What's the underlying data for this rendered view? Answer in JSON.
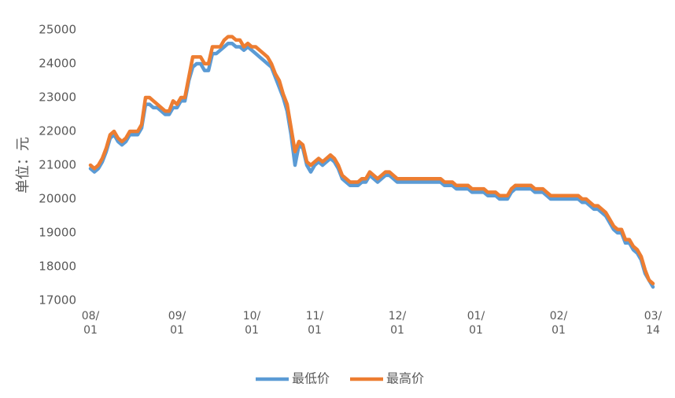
{
  "chart_data": {
    "type": "line",
    "y_label": "单位：元",
    "categories": [
      "08/\n01",
      null,
      null,
      null,
      null,
      null,
      null,
      null,
      null,
      null,
      null,
      null,
      null,
      null,
      null,
      null,
      null,
      null,
      null,
      null,
      null,
      null,
      "09/\n01",
      null,
      null,
      null,
      null,
      null,
      null,
      null,
      null,
      null,
      null,
      null,
      null,
      null,
      null,
      null,
      null,
      null,
      null,
      "10/\n01",
      null,
      null,
      null,
      null,
      null,
      null,
      null,
      null,
      null,
      null,
      null,
      null,
      null,
      null,
      null,
      "11/\n01",
      null,
      null,
      null,
      null,
      null,
      null,
      null,
      null,
      null,
      null,
      null,
      null,
      null,
      null,
      null,
      null,
      null,
      null,
      null,
      null,
      "12/\n01",
      null,
      null,
      null,
      null,
      null,
      null,
      null,
      null,
      null,
      null,
      null,
      null,
      null,
      null,
      null,
      null,
      null,
      null,
      null,
      "01/\n01",
      null,
      null,
      null,
      null,
      null,
      null,
      null,
      null,
      null,
      null,
      null,
      null,
      null,
      null,
      null,
      null,
      null,
      null,
      null,
      null,
      "02/\n01",
      null,
      null,
      null,
      null,
      null,
      null,
      null,
      null,
      null,
      null,
      null,
      null,
      null,
      null,
      null,
      null,
      null,
      null,
      null,
      null,
      null,
      null,
      null,
      "03/\n14"
    ],
    "series": [
      {
        "name": "最低价",
        "color": "#5b9bd5",
        "values": [
          20900,
          20800,
          20900,
          21100,
          21400,
          21800,
          21900,
          21700,
          21600,
          21700,
          21900,
          21900,
          21900,
          22100,
          22800,
          22800,
          22700,
          22700,
          22600,
          22500,
          22500,
          22700,
          22700,
          22900,
          22900,
          23500,
          23900,
          24000,
          24000,
          23800,
          23800,
          24300,
          24300,
          24400,
          24500,
          24600,
          24600,
          24500,
          24500,
          24400,
          24500,
          24400,
          24300,
          24200,
          24100,
          24000,
          23900,
          23600,
          23300,
          23000,
          22600,
          21900,
          21000,
          21600,
          21500,
          21000,
          20800,
          21000,
          21100,
          21000,
          21100,
          21200,
          21100,
          20900,
          20600,
          20500,
          20400,
          20400,
          20400,
          20500,
          20500,
          20700,
          20600,
          20500,
          20600,
          20700,
          20700,
          20600,
          20500,
          20500,
          20500,
          20500,
          20500,
          20500,
          20500,
          20500,
          20500,
          20500,
          20500,
          20500,
          20400,
          20400,
          20400,
          20300,
          20300,
          20300,
          20300,
          20200,
          20200,
          20200,
          20200,
          20100,
          20100,
          20100,
          20000,
          20000,
          20000,
          20200,
          20300,
          20300,
          20300,
          20300,
          20300,
          20200,
          20200,
          20200,
          20100,
          20000,
          20000,
          20000,
          20000,
          20000,
          20000,
          20000,
          20000,
          19900,
          19900,
          19800,
          19700,
          19700,
          19600,
          19500,
          19300,
          19100,
          19000,
          19000,
          18700,
          18700,
          18500,
          18400,
          18200,
          17800,
          17600,
          17400
        ]
      },
      {
        "name": "最高价",
        "color": "#ed7d31",
        "values": [
          21000,
          20900,
          21000,
          21200,
          21500,
          21900,
          22000,
          21800,
          21700,
          21800,
          22000,
          22000,
          22000,
          22200,
          23000,
          23000,
          22900,
          22800,
          22700,
          22600,
          22600,
          22900,
          22800,
          23000,
          23000,
          23600,
          24200,
          24200,
          24200,
          24000,
          24000,
          24500,
          24500,
          24500,
          24700,
          24800,
          24800,
          24700,
          24700,
          24500,
          24600,
          24500,
          24500,
          24400,
          24300,
          24200,
          24000,
          23700,
          23500,
          23100,
          22800,
          22100,
          21400,
          21700,
          21600,
          21100,
          21000,
          21100,
          21200,
          21100,
          21200,
          21300,
          21200,
          21000,
          20700,
          20600,
          20500,
          20500,
          20500,
          20600,
          20600,
          20800,
          20700,
          20600,
          20700,
          20800,
          20800,
          20700,
          20600,
          20600,
          20600,
          20600,
          20600,
          20600,
          20600,
          20600,
          20600,
          20600,
          20600,
          20600,
          20500,
          20500,
          20500,
          20400,
          20400,
          20400,
          20400,
          20300,
          20300,
          20300,
          20300,
          20200,
          20200,
          20200,
          20100,
          20100,
          20100,
          20300,
          20400,
          20400,
          20400,
          20400,
          20400,
          20300,
          20300,
          20300,
          20200,
          20100,
          20100,
          20100,
          20100,
          20100,
          20100,
          20100,
          20100,
          20000,
          20000,
          19900,
          19800,
          19800,
          19700,
          19600,
          19400,
          19200,
          19100,
          19100,
          18800,
          18800,
          18600,
          18500,
          18300,
          17900,
          17600,
          17500
        ]
      }
    ],
    "ylim": [
      17000,
      25000
    ],
    "yticks": [
      17000,
      18000,
      19000,
      20000,
      21000,
      22000,
      23000,
      24000,
      25000
    ],
    "grid": false,
    "legend": "bottom"
  }
}
